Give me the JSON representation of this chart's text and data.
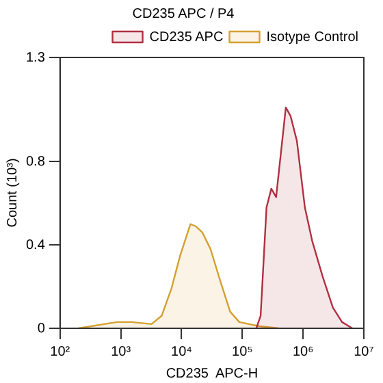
{
  "chart_data": {
    "type": "area",
    "title": "CD235 APC / P4",
    "xlabel": "CD235  APC-H",
    "ylabel": "Count (10³)",
    "log": "x",
    "grid": false,
    "legend": "top right",
    "marker": "none",
    "xlim": [
      100,
      10000000
    ],
    "xticks": [
      {
        "value": 100,
        "label": "10²"
      },
      {
        "value": 1000,
        "label": "10³"
      },
      {
        "value": 10000,
        "label": "10⁴"
      },
      {
        "value": 100000,
        "label": "10⁵"
      },
      {
        "value": 1000000,
        "label": "10⁶"
      },
      {
        "value": 10000000,
        "label": "10⁷"
      }
    ],
    "ylim": [
      0,
      1.3
    ],
    "yticks": [
      0,
      0.4,
      0.8,
      1.3
    ],
    "series": [
      {
        "name": "CD235 APC",
        "color": "#b03040",
        "x": [
          170000,
          200000,
          250000,
          300000,
          360000,
          520000,
          620000,
          790000,
          1070000,
          1410000,
          2090000,
          3090000,
          4370000,
          6460000
        ],
        "values": [
          0,
          0.06,
          0.58,
          0.67,
          0.63,
          1.06,
          1.02,
          0.9,
          0.58,
          0.42,
          0.25,
          0.1,
          0.03,
          0
        ]
      },
      {
        "name": "Isotype Control",
        "color": "#d4a030",
        "x": [
          200,
          870,
          1500,
          3200,
          4700,
          6800,
          9500,
          14000,
          17000,
          22000,
          30000,
          43000,
          63000,
          89000,
          190000,
          400000
        ],
        "values": [
          0,
          0.03,
          0.03,
          0.02,
          0.06,
          0.19,
          0.35,
          0.5,
          0.49,
          0.46,
          0.38,
          0.23,
          0.08,
          0.03,
          0.01,
          0
        ]
      }
    ]
  }
}
